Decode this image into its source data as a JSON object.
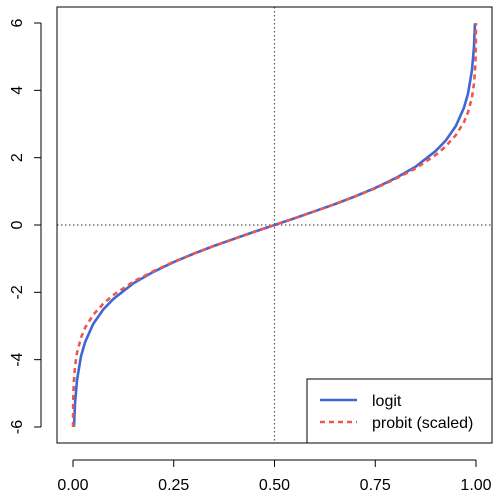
{
  "chart_data": {
    "type": "line",
    "title": "",
    "xlabel": "",
    "ylabel": "",
    "xlim": [
      0,
      1
    ],
    "ylim": [
      -6,
      6
    ],
    "x_ticks": [
      0,
      0.25,
      0.5,
      0.75,
      1
    ],
    "x_tick_labels": [
      "0.00",
      "0.25",
      "0.50",
      "0.75",
      "1.00"
    ],
    "y_ticks": [
      -6,
      -4,
      -2,
      0,
      2,
      4,
      6
    ],
    "y_tick_labels": [
      "-6",
      "-4",
      "-2",
      "0",
      "2",
      "4",
      "6"
    ],
    "reference_lines": {
      "vertical_x": 0.5,
      "horizontal_y": 0,
      "style": "dotted",
      "color": "#555555"
    },
    "legend_position": "bottom-right",
    "series": [
      {
        "name": "logit",
        "color": "#3E66D6",
        "style": "solid",
        "x": [
          0.0025,
          0.005,
          0.01,
          0.02,
          0.03,
          0.05,
          0.075,
          0.1,
          0.15,
          0.2,
          0.25,
          0.3,
          0.35,
          0.4,
          0.45,
          0.5,
          0.55,
          0.6,
          0.65,
          0.7,
          0.75,
          0.8,
          0.85,
          0.9,
          0.925,
          0.95,
          0.97,
          0.98,
          0.99,
          0.995,
          0.9975
        ],
        "y": [
          -5.99,
          -5.29,
          -4.6,
          -3.89,
          -3.48,
          -2.94,
          -2.51,
          -2.2,
          -1.73,
          -1.39,
          -1.1,
          -0.85,
          -0.62,
          -0.41,
          -0.2,
          0,
          0.2,
          0.41,
          0.62,
          0.85,
          1.1,
          1.39,
          1.73,
          2.2,
          2.51,
          2.94,
          3.48,
          3.89,
          4.6,
          5.29,
          5.99
        ]
      },
      {
        "name": "probit (scaled)",
        "color": "#F2564A",
        "style": "dashed",
        "x": [
          0.00015,
          0.0005,
          0.001,
          0.002,
          0.005,
          0.01,
          0.02,
          0.03,
          0.05,
          0.075,
          0.1,
          0.15,
          0.2,
          0.25,
          0.3,
          0.35,
          0.4,
          0.45,
          0.5,
          0.55,
          0.6,
          0.65,
          0.7,
          0.75,
          0.8,
          0.85,
          0.9,
          0.925,
          0.95,
          0.97,
          0.98,
          0.99,
          0.995,
          0.998,
          0.999,
          0.9995,
          0.99985
        ],
        "y": [
          -6.0,
          -5.3,
          -5.01,
          -4.66,
          -4.2,
          -3.79,
          -3.34,
          -3.05,
          -2.67,
          -2.34,
          -2.08,
          -1.68,
          -1.37,
          -1.09,
          -0.85,
          -0.62,
          -0.41,
          -0.2,
          0,
          0.2,
          0.41,
          0.62,
          0.85,
          1.09,
          1.37,
          1.68,
          2.08,
          2.34,
          2.67,
          3.05,
          3.34,
          3.79,
          4.2,
          4.66,
          5.01,
          5.3,
          6.0
        ]
      }
    ]
  }
}
